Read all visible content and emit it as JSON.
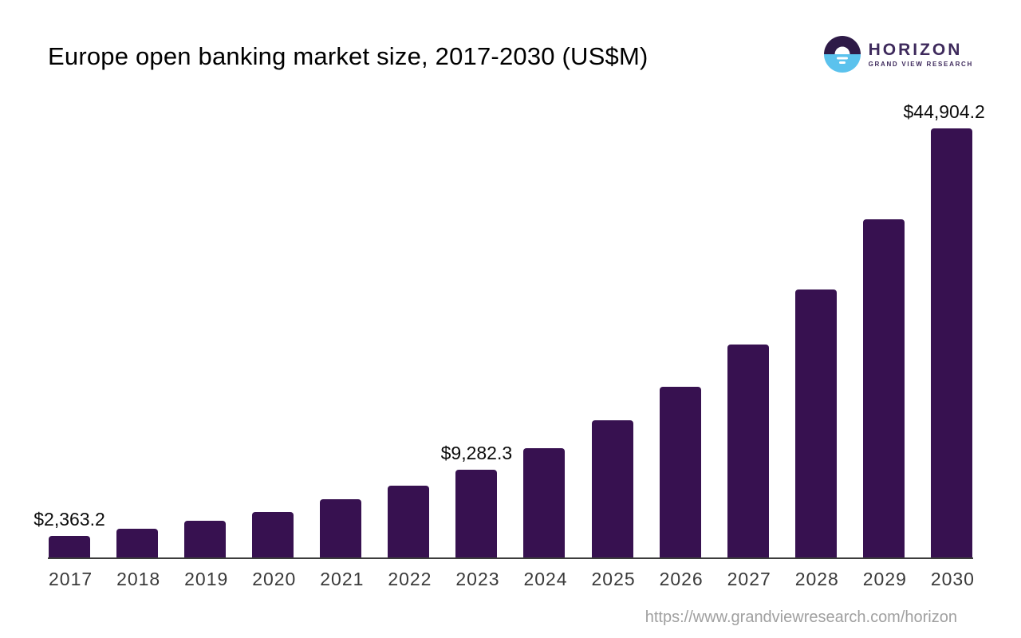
{
  "header": {
    "title": "Europe open banking market size, 2017-2030 (US$M)",
    "logo": {
      "brand": "HORIZON",
      "tagline": "GRAND VIEW RESEARCH"
    }
  },
  "footer": {
    "source_url": "https://www.grandviewresearch.com/horizon"
  },
  "colors": {
    "bar": "#371150",
    "axis": "#3c3c3c",
    "x_label": "#3a3a3a",
    "data_label": "#0b0b0b",
    "url_text": "#a0a0a0",
    "logo_purple": "#2e1a47",
    "logo_blue": "#5bc2ed",
    "logo_text": "#3e2a5c"
  },
  "chart_data": {
    "type": "bar",
    "title": "Europe open banking market size, 2017-2030 (US$M)",
    "unit": "US$M",
    "categories": [
      "2017",
      "2018",
      "2019",
      "2020",
      "2021",
      "2022",
      "2023",
      "2024",
      "2025",
      "2026",
      "2027",
      "2028",
      "2029",
      "2030"
    ],
    "values": [
      2363.2,
      3080,
      3915,
      4830,
      6160,
      7580,
      9282.3,
      11495,
      14410,
      17910,
      22320,
      28070,
      35400,
      44904.2
    ],
    "data_labels": [
      "$2,363.2",
      null,
      null,
      null,
      null,
      null,
      "$9,282.3",
      null,
      null,
      null,
      null,
      null,
      null,
      "$44,904.2"
    ],
    "ylim": [
      0,
      44904.2
    ],
    "grid": false,
    "legend": false,
    "bar_color": "#371150"
  }
}
